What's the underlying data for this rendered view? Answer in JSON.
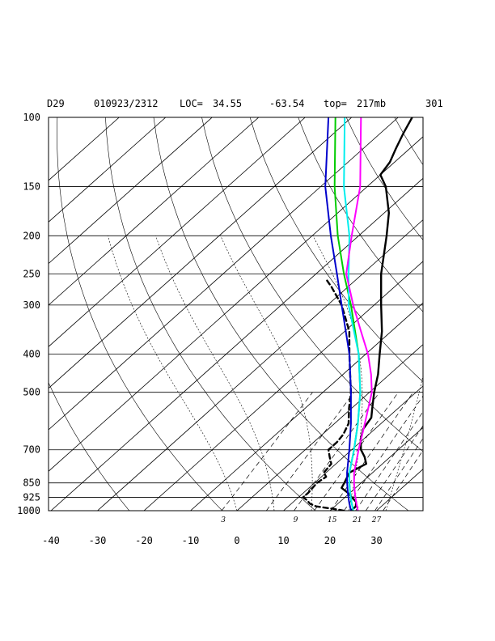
{
  "header": {
    "station": "D29",
    "datetime": "010923/2312",
    "loc_label": "LOC=",
    "lat": "34.55",
    "lon": "-63.54",
    "top_label": "top=",
    "top_value": "217mb",
    "code": "301"
  },
  "chart_data": {
    "type": "line",
    "diagram": "skew-T log-P",
    "pressure_axis": {
      "scale": "log",
      "range_mb": [
        1000,
        100
      ],
      "ticks": [
        100,
        150,
        200,
        250,
        300,
        400,
        500,
        700,
        850,
        925,
        1000
      ]
    },
    "temperature_axis": {
      "range_c": [
        -40,
        40
      ],
      "ticks": [
        -40,
        -30,
        -20,
        -10,
        0,
        10,
        20,
        30
      ]
    },
    "mixing_ratio_labels": [
      "3",
      "9",
      "15",
      "21",
      "27"
    ],
    "grid": true,
    "series": [
      {
        "role": "temperature",
        "color": "#000000",
        "style": "solid",
        "points": [
          [
            1000,
            24.5
          ],
          [
            975,
            24.5
          ],
          [
            950,
            23.5
          ],
          [
            925,
            21.5
          ],
          [
            900,
            19.5
          ],
          [
            875,
            17.0
          ],
          [
            850,
            16.4
          ],
          [
            800,
            15.0
          ],
          [
            760,
            16.5
          ],
          [
            730,
            14.5
          ],
          [
            700,
            12.0
          ],
          [
            660,
            9.5
          ],
          [
            620,
            7.5
          ],
          [
            580,
            6.5
          ],
          [
            550,
            4.5
          ],
          [
            500,
            1.0
          ],
          [
            450,
            -2.5
          ],
          [
            400,
            -7.0
          ],
          [
            350,
            -12.0
          ],
          [
            300,
            -18.5
          ],
          [
            250,
            -26.0
          ],
          [
            200,
            -34.0
          ],
          [
            175,
            -39.0
          ],
          [
            150,
            -46.0
          ],
          [
            140,
            -50.0
          ],
          [
            130,
            -51.0
          ],
          [
            120,
            -53.0
          ],
          [
            110,
            -55.0
          ],
          [
            100,
            -57.0
          ]
        ]
      },
      {
        "role": "dewpoint",
        "color": "#000000",
        "style": "dashed",
        "points": [
          [
            1000,
            23.0
          ],
          [
            990,
            20.5
          ],
          [
            975,
            16.0
          ],
          [
            960,
            14.0
          ],
          [
            940,
            12.5
          ],
          [
            925,
            11.0
          ],
          [
            900,
            11.0
          ],
          [
            850,
            10.5
          ],
          [
            820,
            11.0
          ],
          [
            800,
            9.5
          ],
          [
            760,
            9.0
          ],
          [
            730,
            7.0
          ],
          [
            700,
            5.0
          ],
          [
            670,
            5.0
          ],
          [
            640,
            4.5
          ],
          [
            600,
            3.0
          ],
          [
            550,
            -0.5
          ],
          [
            500,
            -4.0
          ],
          [
            450,
            -8.5
          ],
          [
            400,
            -13.5
          ],
          [
            350,
            -19.0
          ],
          [
            300,
            -27.0
          ],
          [
            270,
            -33.5
          ],
          [
            260,
            -36.0
          ]
        ]
      },
      {
        "role": "profile",
        "color": "#0000cc",
        "style": "solid",
        "points": [
          [
            1000,
            24.5
          ],
          [
            950,
            22.0
          ],
          [
            900,
            19.5
          ],
          [
            850,
            17.0
          ],
          [
            800,
            14.5
          ],
          [
            700,
            9.5
          ],
          [
            600,
            3.5
          ],
          [
            500,
            -4.0
          ],
          [
            400,
            -13.5
          ],
          [
            300,
            -27.0
          ],
          [
            250,
            -35.5
          ],
          [
            200,
            -46.0
          ],
          [
            150,
            -59.0
          ],
          [
            100,
            -75.0
          ]
        ]
      },
      {
        "role": "profile",
        "color": "#00cc00",
        "style": "solid",
        "points": [
          [
            1000,
            25.0
          ],
          [
            950,
            22.5
          ],
          [
            900,
            20.0
          ],
          [
            850,
            17.5
          ],
          [
            800,
            15.0
          ],
          [
            700,
            10.5
          ],
          [
            600,
            5.0
          ],
          [
            500,
            -2.0
          ],
          [
            400,
            -11.5
          ],
          [
            300,
            -25.0
          ],
          [
            250,
            -34.0
          ],
          [
            200,
            -44.5
          ],
          [
            150,
            -57.0
          ],
          [
            100,
            -73.5
          ]
        ]
      },
      {
        "role": "profile",
        "color": "#00eeee",
        "style": "solid",
        "points": [
          [
            1000,
            25.0
          ],
          [
            950,
            22.5
          ],
          [
            900,
            20.0
          ],
          [
            850,
            17.5
          ],
          [
            800,
            15.0
          ],
          [
            700,
            10.5
          ],
          [
            600,
            5.0
          ],
          [
            500,
            -2.0
          ],
          [
            400,
            -11.5
          ],
          [
            300,
            -25.5
          ],
          [
            250,
            -33.0
          ],
          [
            200,
            -42.0
          ],
          [
            150,
            -55.0
          ],
          [
            100,
            -71.5
          ]
        ]
      },
      {
        "role": "profile",
        "color": "#ff00ff",
        "style": "solid",
        "points": [
          [
            1000,
            26.0
          ],
          [
            950,
            23.5
          ],
          [
            900,
            21.0
          ],
          [
            850,
            18.5
          ],
          [
            800,
            16.0
          ],
          [
            700,
            11.5
          ],
          [
            600,
            6.5
          ],
          [
            500,
            0.5
          ],
          [
            450,
            -4.0
          ],
          [
            400,
            -9.5
          ],
          [
            350,
            -16.5
          ],
          [
            300,
            -24.5
          ],
          [
            250,
            -33.5
          ],
          [
            200,
            -41.5
          ],
          [
            150,
            -51.5
          ],
          [
            100,
            -68.0
          ]
        ]
      }
    ]
  }
}
